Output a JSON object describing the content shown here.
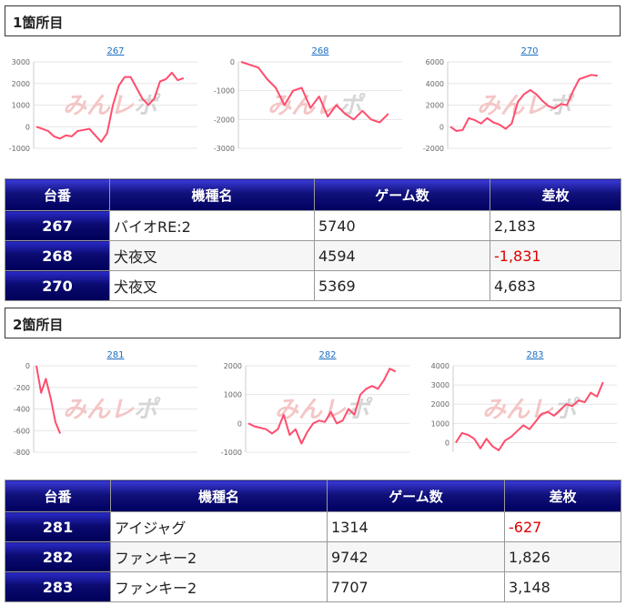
{
  "sections": [
    {
      "title": "1箇所目",
      "table": {
        "headers": [
          "台番",
          "機種名",
          "ゲーム数",
          "差枚"
        ],
        "rows": [
          {
            "machine_no": "267",
            "name": "バイオRE:2",
            "games": "5740",
            "diff": "2,183"
          },
          {
            "machine_no": "268",
            "name": "犬夜叉",
            "games": "4594",
            "diff": "-1,831"
          },
          {
            "machine_no": "270",
            "name": "犬夜叉",
            "games": "5369",
            "diff": "4,683"
          }
        ]
      }
    },
    {
      "title": "2箇所目",
      "table": {
        "headers": [
          "台番",
          "機種名",
          "ゲーム数",
          "差枚"
        ],
        "rows": [
          {
            "machine_no": "281",
            "name": "アイジャグ",
            "games": "1314",
            "diff": "-627"
          },
          {
            "machine_no": "282",
            "name": "ファンキー2",
            "games": "9742",
            "diff": "1,826"
          },
          {
            "machine_no": "283",
            "name": "ファンキー2",
            "games": "7707",
            "diff": "3,148"
          }
        ]
      }
    }
  ],
  "watermark": {
    "part1": "みんレ",
    "part2": "ポ"
  },
  "colors": {
    "line": "#ff4d6d",
    "header_dark": "#000060",
    "negative": "#e00000"
  },
  "chart_data": [
    {
      "type": "line",
      "title": "267",
      "yticks": [
        3000,
        2000,
        1000,
        0,
        -1000
      ],
      "ylim": [
        -1000,
        3000
      ],
      "values": [
        0,
        -100,
        -200,
        -450,
        -550,
        -400,
        -450,
        -200,
        -150,
        -100,
        -400,
        -700,
        -300,
        1000,
        1900,
        2300,
        2300,
        1800,
        1300,
        1000,
        1300,
        2100,
        2200,
        2500,
        2150,
        2250
      ]
    },
    {
      "type": "line",
      "title": "268",
      "yticks": [
        0,
        -1000,
        -2000,
        -3000
      ],
      "ylim": [
        -3000,
        0
      ],
      "values": [
        0,
        -100,
        -200,
        -600,
        -900,
        -1500,
        -1000,
        -900,
        -1600,
        -1200,
        -1900,
        -1500,
        -1800,
        -2000,
        -1700,
        -2000,
        -2100,
        -1800
      ]
    },
    {
      "type": "line",
      "title": "270",
      "yticks": [
        6000,
        4000,
        2000,
        0,
        -2000
      ],
      "ylim": [
        -2000,
        6000
      ],
      "values": [
        0,
        -400,
        -300,
        800,
        600,
        300,
        800,
        400,
        200,
        -200,
        300,
        2300,
        3000,
        3400,
        3000,
        2400,
        1900,
        1700,
        2100,
        2000,
        3300,
        4400,
        4600,
        4800,
        4700
      ]
    },
    {
      "type": "line",
      "title": "281",
      "yticks": [
        0,
        -200,
        -400,
        -600,
        -800
      ],
      "ylim": [
        -800,
        0
      ],
      "values": [
        0,
        -250,
        -120,
        -300,
        -520,
        -627
      ]
    },
    {
      "type": "line",
      "title": "282",
      "yticks": [
        2000,
        1000,
        0,
        -1000
      ],
      "ylim": [
        -1000,
        2000
      ],
      "values": [
        0,
        -100,
        -150,
        -200,
        -350,
        -200,
        300,
        -400,
        -200,
        -700,
        -300,
        0,
        100,
        50,
        400,
        0,
        100,
        500,
        300,
        1000,
        1200,
        1300,
        1200,
        1500,
        1900,
        1800
      ]
    },
    {
      "type": "line",
      "title": "283",
      "yticks": [
        4000,
        3000,
        2000,
        1000,
        0
      ],
      "ylim": [
        -500,
        4000
      ],
      "values": [
        0,
        500,
        400,
        200,
        -300,
        200,
        -200,
        -400,
        100,
        300,
        600,
        900,
        700,
        1100,
        1500,
        1600,
        1400,
        1700,
        2000,
        1900,
        2200,
        2100,
        2600,
        2400,
        3148
      ]
    }
  ]
}
